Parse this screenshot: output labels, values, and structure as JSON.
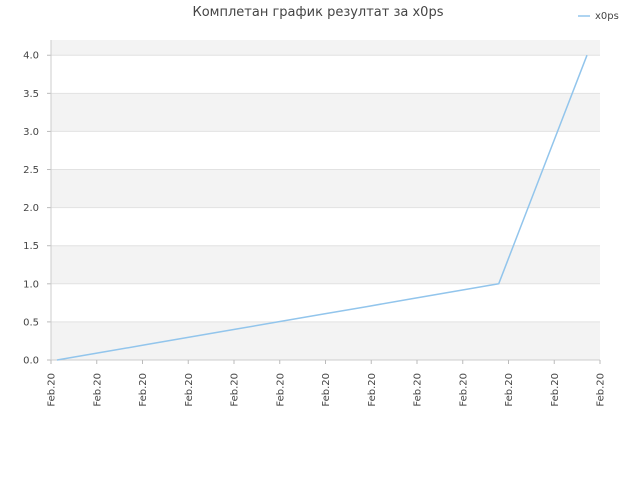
{
  "chart_data": {
    "type": "line",
    "title": "Комплетан график резултат за x0ps",
    "xlabel": "",
    "ylabel": "",
    "categories": [
      "Feb.20",
      "Feb.20",
      "Feb.20",
      "Feb.20",
      "Feb.20",
      "Feb.20",
      "Feb.20",
      "Feb.20",
      "Feb.20",
      "Feb.20",
      "Feb.20",
      "Feb.20",
      "Feb.20"
    ],
    "series": [
      {
        "name": "x0ps",
        "color": "#92c5ec",
        "values": [
          0.0,
          0.1,
          0.2,
          0.3,
          0.4,
          0.5,
          0.6,
          0.7,
          0.8,
          0.9,
          1.0,
          2.5,
          4.0
        ]
      }
    ],
    "ylim": [
      0,
      4.2
    ],
    "yticks": [
      "0.0",
      "0.5",
      "1.0",
      "1.5",
      "2.0",
      "2.5",
      "3.0",
      "3.5",
      "4.0"
    ],
    "grid": true,
    "legend_position": "top-right",
    "band_color": "#f3f3f3"
  }
}
